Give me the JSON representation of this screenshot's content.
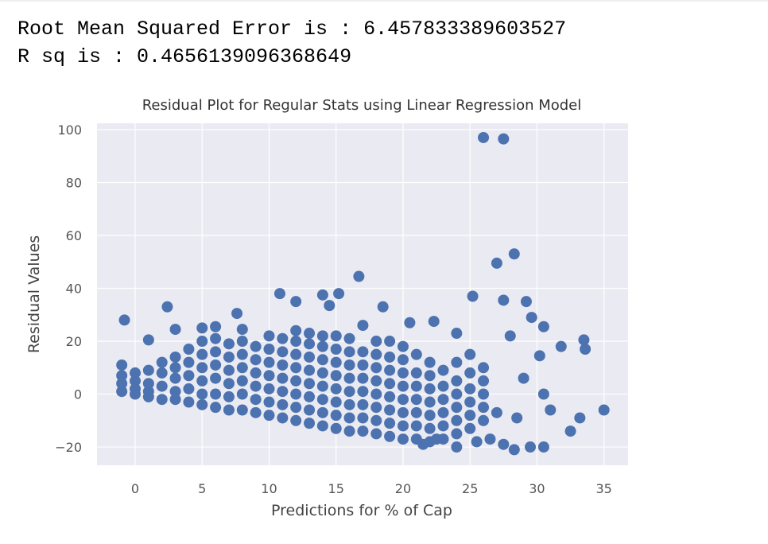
{
  "output": {
    "lines": [
      "Root Mean Squared Error is : 6.457833389603527",
      "R sq is : 0.4656139096368649"
    ]
  },
  "chart_data": {
    "type": "scatter",
    "title": "Residual Plot for Regular Stats using Linear Regression Model",
    "xlabel": "Predictions for % of Cap",
    "ylabel": "Residual Values",
    "color": "#4c72b0",
    "grid": true,
    "xlim": [
      -2.85,
      36.8
    ],
    "ylim": [
      -26.9,
      102.4
    ],
    "xticks": [
      0,
      5,
      10,
      15,
      20,
      25,
      30,
      35
    ],
    "yticks": [
      {
        "value": -20,
        "label": "−20"
      },
      0,
      20,
      40,
      60,
      80,
      100
    ],
    "x": [
      26,
      27.5,
      28.3,
      27,
      16.7,
      10.8,
      12,
      14,
      15.2,
      14.5,
      2.4,
      7.6,
      18.5,
      -0.8,
      25.2,
      27.5,
      29.2,
      29.6,
      28,
      33.5,
      33.6,
      35,
      31.8,
      30.5,
      30.2,
      32.5,
      33.2,
      30.5,
      29.5,
      28.3,
      27.5,
      26.5,
      31,
      29,
      30.5,
      28.5,
      27,
      25.5,
      24,
      22.5,
      21.5,
      -1,
      1,
      3,
      5,
      6,
      8,
      20.5,
      22.3,
      24,
      19,
      17,
      -1,
      -1,
      -1,
      0,
      0,
      0,
      0,
      1,
      1,
      1,
      1,
      2,
      2,
      2,
      2,
      3,
      3,
      3,
      3,
      3,
      4,
      4,
      4,
      4,
      4,
      5,
      5,
      5,
      5,
      5,
      5,
      6,
      6,
      6,
      6,
      6,
      6,
      7,
      7,
      7,
      7,
      7,
      7,
      8,
      8,
      8,
      8,
      8,
      8,
      9,
      9,
      9,
      9,
      9,
      9,
      10,
      10,
      10,
      10,
      10,
      10,
      10,
      11,
      11,
      11,
      11,
      11,
      11,
      11,
      12,
      12,
      12,
      12,
      12,
      12,
      12,
      12,
      13,
      13,
      13,
      13,
      13,
      13,
      13,
      13,
      14,
      14,
      14,
      14,
      14,
      14,
      14,
      14,
      15,
      15,
      15,
      15,
      15,
      15,
      15,
      15,
      16,
      16,
      16,
      16,
      16,
      16,
      16,
      16,
      17,
      17,
      17,
      17,
      17,
      17,
      17,
      18,
      18,
      18,
      18,
      18,
      18,
      18,
      18,
      19,
      19,
      19,
      19,
      19,
      19,
      19,
      20,
      20,
      20,
      20,
      20,
      20,
      20,
      20,
      21,
      21,
      21,
      21,
      21,
      21,
      21,
      22,
      22,
      22,
      22,
      22,
      22,
      22,
      23,
      23,
      23,
      23,
      23,
      23,
      24,
      24,
      24,
      24,
      24,
      24,
      25,
      25,
      25,
      25,
      25,
      25,
      26,
      26,
      26,
      26,
      26
    ],
    "y": [
      97,
      96.5,
      53,
      49.5,
      44.5,
      38,
      35,
      37.5,
      38,
      33.5,
      33,
      30.5,
      33,
      28,
      37,
      35.5,
      35,
      29,
      22,
      20.5,
      17,
      -6,
      18,
      25.5,
      14.5,
      -14,
      -9,
      -20,
      -20,
      -21,
      -19,
      -17,
      -6,
      6,
      0,
      -9,
      -7,
      -18,
      -20,
      -17,
      -19,
      11,
      20.5,
      24.5,
      25,
      25.5,
      24.5,
      27,
      27.5,
      23,
      20,
      26,
      1,
      4,
      7,
      2,
      5,
      8,
      0,
      -1,
      4,
      9,
      1,
      -2,
      3,
      8,
      12,
      -2,
      1,
      6,
      10,
      14,
      -3,
      2,
      7,
      12,
      17,
      -4,
      0,
      5,
      10,
      15,
      20,
      -5,
      0,
      6,
      11,
      16,
      21,
      -6,
      -1,
      4,
      9,
      14,
      19,
      -6,
      0,
      5,
      10,
      15,
      20,
      -7,
      -2,
      3,
      8,
      13,
      18,
      -8,
      -3,
      2,
      7,
      12,
      17,
      22,
      -9,
      -4,
      1,
      6,
      11,
      16,
      21,
      -10,
      -5,
      0,
      5,
      10,
      15,
      20,
      24,
      -11,
      -6,
      -1,
      4,
      9,
      14,
      19,
      23,
      -12,
      -7,
      -2,
      3,
      8,
      13,
      18,
      22,
      -13,
      -8,
      -3,
      2,
      7,
      12,
      17,
      22,
      -14,
      -9,
      -4,
      1,
      6,
      11,
      16,
      21,
      -14,
      -9,
      -4,
      1,
      6,
      11,
      16,
      -15,
      -10,
      -5,
      0,
      5,
      10,
      15,
      20,
      -16,
      -11,
      -6,
      -1,
      4,
      9,
      14,
      -17,
      -12,
      -7,
      -2,
      3,
      8,
      13,
      18,
      -17,
      -12,
      -7,
      -2,
      3,
      8,
      15,
      -18,
      -13,
      -8,
      -3,
      2,
      7,
      12,
      -17,
      -12,
      -7,
      -2,
      3,
      9,
      -15,
      -10,
      -5,
      0,
      5,
      12,
      -13,
      -8,
      -3,
      2,
      8,
      15,
      -10,
      -5,
      0,
      5,
      10
    ]
  }
}
